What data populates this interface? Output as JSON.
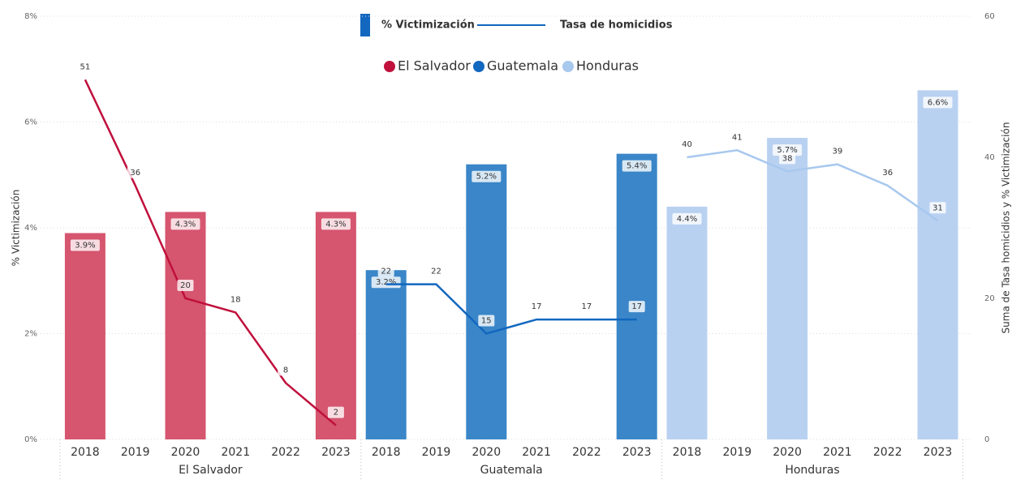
{
  "chart_data": {
    "type": "combo",
    "legend": {
      "bar": "% Victimización",
      "line": "Tasa de homicidios"
    },
    "ylabel": "% Victimización",
    "y2label": "Suma de Tasa homicidios y % Victimización",
    "categories": [
      "2018",
      "2019",
      "2020",
      "2021",
      "2022",
      "2023"
    ],
    "ylim": [
      0,
      8
    ],
    "yticks": [
      {
        "value": 0,
        "label": "0%"
      },
      {
        "value": 2,
        "label": "2%"
      },
      {
        "value": 4,
        "label": "4%"
      },
      {
        "value": 6,
        "label": "6%"
      },
      {
        "value": 8,
        "label": "8%"
      }
    ],
    "y2lim": [
      0,
      60
    ],
    "y2ticks": [
      0,
      20,
      40,
      60
    ],
    "grid": true,
    "series": [
      {
        "name": "El Salvador",
        "color": "#c0103c",
        "bar_color": "#d6556f",
        "bar_values": [
          3.9,
          null,
          4.3,
          null,
          null,
          4.3
        ],
        "value_labels": [
          "3.9%",
          null,
          "4.3%",
          null,
          null,
          "4.3%"
        ],
        "line_values": [
          51,
          36,
          20,
          18,
          8,
          2
        ]
      },
      {
        "name": "Guatemala",
        "color": "#1267bf",
        "bar_color": "#3a86c8",
        "bar_values": [
          3.2,
          null,
          5.2,
          null,
          null,
          5.4
        ],
        "value_labels": [
          "3.2%",
          null,
          "5.2%",
          null,
          null,
          "5.4%"
        ],
        "line_values": [
          22,
          22,
          15,
          17,
          17,
          17
        ]
      },
      {
        "name": "Honduras",
        "color": "#a8c8ee",
        "bar_color": "#b9d1f1",
        "bar_values": [
          4.4,
          null,
          5.7,
          null,
          null,
          6.6
        ],
        "value_labels": [
          "4.4%",
          null,
          "5.7%",
          null,
          null,
          "6.6%"
        ],
        "line_values": [
          40,
          41,
          38,
          39,
          36,
          31
        ]
      }
    ]
  }
}
